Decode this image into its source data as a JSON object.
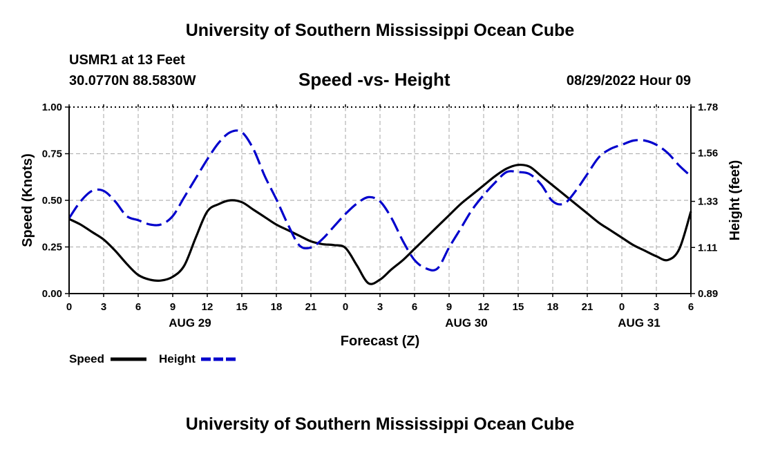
{
  "page": {
    "title_top": "University of Southern Mississippi Ocean Cube",
    "title_bottom": "University of Southern Mississippi Ocean Cube",
    "station": "USMR1 at 13 Feet",
    "coords": "30.0770N  88.5830W",
    "date_hour": "08/29/2022 Hour 09"
  },
  "chart_data": {
    "type": "line",
    "title": "Speed -vs- Height",
    "xlabel": "Forecast (Z)",
    "ylabel_left": "Speed (Knots)",
    "ylabel_right": "Height (feet)",
    "x_ticks": [
      "0",
      "3",
      "6",
      "9",
      "12",
      "15",
      "18",
      "21",
      "0",
      "3",
      "6",
      "9",
      "12",
      "15",
      "18",
      "21",
      "0",
      "3",
      "6"
    ],
    "day_labels": [
      {
        "label": "AUG 29",
        "tick_index": 3.5
      },
      {
        "label": "AUG 30",
        "tick_index": 11.5
      },
      {
        "label": "AUG 31",
        "tick_index": 16.5
      }
    ],
    "xlim": [
      0,
      54
    ],
    "y_left": {
      "lim": [
        0,
        1
      ],
      "ticks": [
        0,
        0.25,
        0.5,
        0.75,
        1
      ],
      "tick_labels": [
        "0.00",
        "0.25",
        "0.50",
        "0.75",
        "1.00"
      ]
    },
    "y_right": {
      "lim": [
        0.89,
        1.78
      ],
      "ticks": [
        0.89,
        1.11,
        1.33,
        1.56,
        1.78
      ],
      "tick_labels": [
        "0.89",
        "1.11",
        "1.33",
        "1.56",
        "1.78"
      ]
    },
    "grid": true,
    "series": [
      {
        "name": "Speed",
        "axis": "left",
        "color": "#000000",
        "dash": "solid",
        "x": [
          0,
          1,
          2,
          3,
          4,
          5,
          6,
          7,
          8,
          9,
          10,
          11,
          12,
          13,
          14,
          15,
          16,
          17,
          18,
          19,
          20,
          21,
          22,
          23,
          24,
          25,
          26,
          27,
          28,
          29,
          30,
          31,
          32,
          33,
          34,
          35,
          36,
          37,
          38,
          39,
          40,
          41,
          42,
          43,
          44,
          45,
          46,
          47,
          48,
          49,
          50,
          51,
          52,
          53,
          54
        ],
        "values": [
          0.4,
          0.37,
          0.33,
          0.29,
          0.23,
          0.16,
          0.1,
          0.075,
          0.07,
          0.09,
          0.15,
          0.3,
          0.44,
          0.48,
          0.5,
          0.49,
          0.45,
          0.41,
          0.37,
          0.34,
          0.31,
          0.28,
          0.265,
          0.26,
          0.245,
          0.15,
          0.055,
          0.075,
          0.13,
          0.18,
          0.24,
          0.3,
          0.36,
          0.42,
          0.48,
          0.53,
          0.58,
          0.63,
          0.67,
          0.69,
          0.68,
          0.63,
          0.58,
          0.53,
          0.48,
          0.43,
          0.38,
          0.34,
          0.3,
          0.26,
          0.23,
          0.2,
          0.18,
          0.24,
          0.44
        ]
      },
      {
        "name": "Height",
        "axis": "right",
        "color": "#0000cc",
        "dash": "dashed",
        "x": [
          0,
          1,
          2,
          3,
          4,
          5,
          6,
          7,
          8,
          9,
          10,
          11,
          12,
          13,
          14,
          15,
          16,
          17,
          18,
          19,
          20,
          21,
          22,
          23,
          24,
          25,
          26,
          27,
          28,
          29,
          30,
          31,
          32,
          33,
          34,
          35,
          36,
          37,
          38,
          39,
          40,
          41,
          42,
          43,
          44,
          45,
          46,
          47,
          48,
          49,
          50,
          51,
          52,
          53,
          54
        ],
        "values": [
          1.25,
          1.33,
          1.38,
          1.38,
          1.33,
          1.26,
          1.24,
          1.22,
          1.22,
          1.26,
          1.35,
          1.44,
          1.53,
          1.61,
          1.66,
          1.66,
          1.58,
          1.45,
          1.34,
          1.22,
          1.12,
          1.11,
          1.15,
          1.21,
          1.27,
          1.32,
          1.35,
          1.33,
          1.25,
          1.14,
          1.05,
          1.01,
          1.01,
          1.11,
          1.2,
          1.29,
          1.36,
          1.42,
          1.47,
          1.47,
          1.46,
          1.41,
          1.33,
          1.32,
          1.38,
          1.46,
          1.54,
          1.58,
          1.6,
          1.62,
          1.62,
          1.6,
          1.56,
          1.5,
          1.45
        ]
      }
    ],
    "legend": [
      {
        "label": "Speed",
        "color": "#000000",
        "dash": "solid"
      },
      {
        "label": "Height",
        "color": "#0000cc",
        "dash": "dashed"
      }
    ]
  }
}
